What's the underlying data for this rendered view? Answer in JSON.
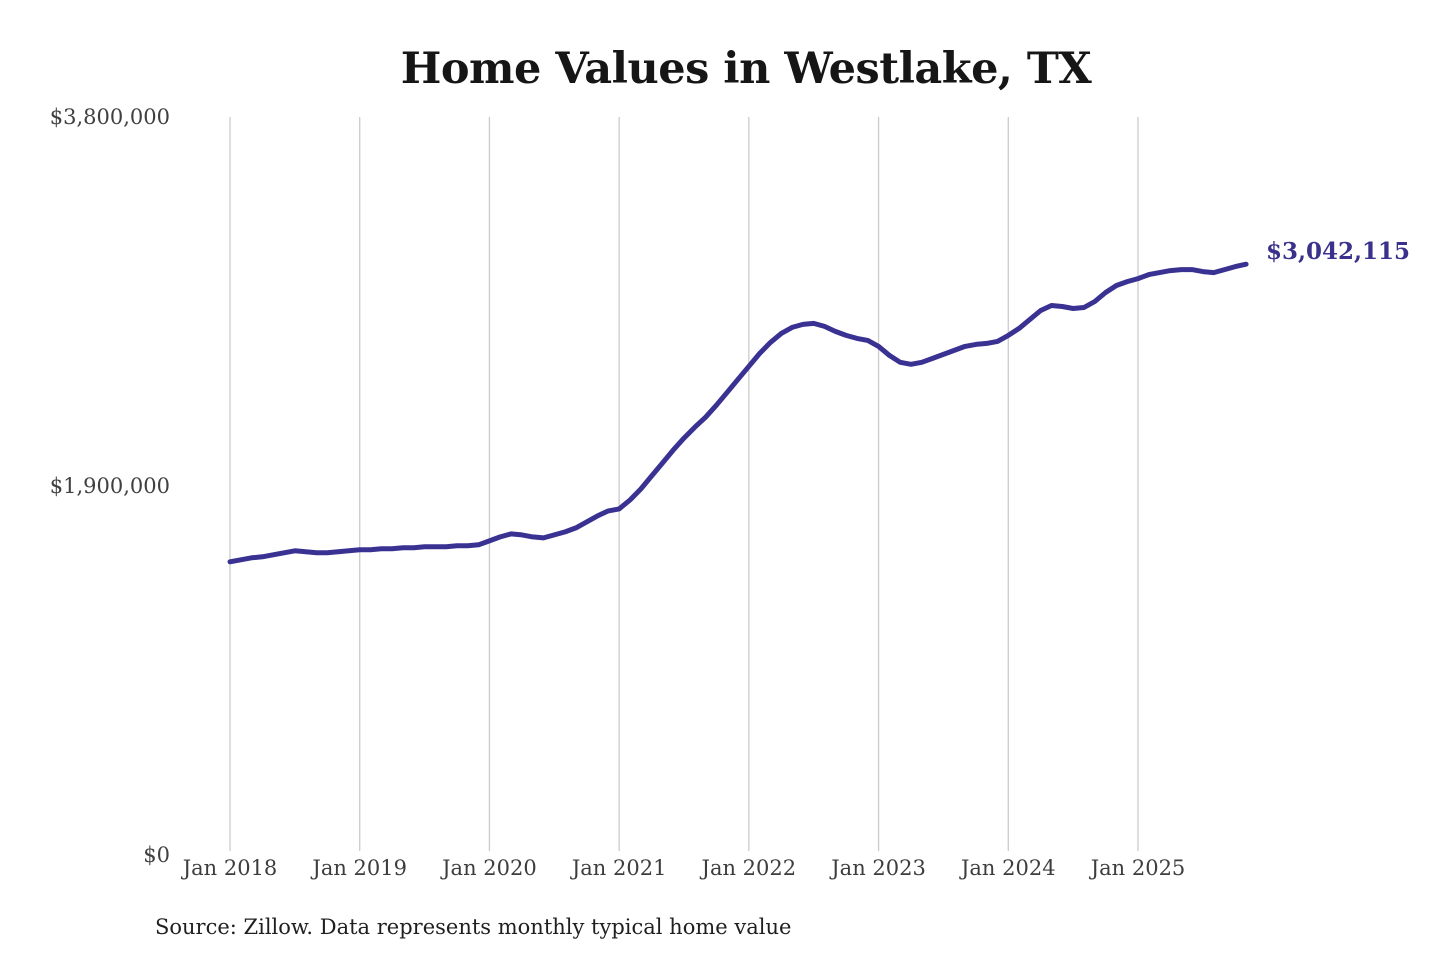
{
  "chart_data": {
    "type": "line",
    "title": "Home Values in Westlake, TX",
    "source_note": "Source: Zillow. Data represents monthly typical home value",
    "end_label": "$3,042,115",
    "series_name": "Monthly typical home value",
    "x_monthly_start": "2018-01",
    "x_monthly_end": "2025-11",
    "x_tick_labels": [
      "Jan 2018",
      "Jan 2019",
      "Jan 2020",
      "Jan 2021",
      "Jan 2022",
      "Jan 2023",
      "Jan 2024",
      "Jan 2025"
    ],
    "y_ticks": [
      {
        "label": "$0",
        "value": 0
      },
      {
        "label": "$1,900,000",
        "value": 1900000
      },
      {
        "label": "$3,800,000",
        "value": 3800000
      }
    ],
    "ylim": [
      0,
      3800000
    ],
    "grid": "vertical-only",
    "legend": "none",
    "values": [
      1509700,
      1520000,
      1530300,
      1535400,
      1545700,
      1556000,
      1566200,
      1561100,
      1556000,
      1556000,
      1561100,
      1566200,
      1571300,
      1571300,
      1576500,
      1576500,
      1581600,
      1581600,
      1586700,
      1586700,
      1586700,
      1591900,
      1591900,
      1597000,
      1617500,
      1638100,
      1653500,
      1648300,
      1638100,
      1633000,
      1648300,
      1663700,
      1684300,
      1715100,
      1745900,
      1771600,
      1781900,
      1828100,
      1884600,
      1951300,
      2018100,
      2084800,
      2146500,
      2202900,
      2254300,
      2315900,
      2382700,
      2449400,
      2516200,
      2583000,
      2639400,
      2685700,
      2716500,
      2731900,
      2737000,
      2721600,
      2695900,
      2675400,
      2660000,
      2649700,
      2618900,
      2572700,
      2536700,
      2526500,
      2536700,
      2557200,
      2577800,
      2598300,
      2618900,
      2629100,
      2634200,
      2644500,
      2675400,
      2711300,
      2757600,
      2803800,
      2829400,
      2824300,
      2814000,
      2819200,
      2850000,
      2896200,
      2932200,
      2952700,
      2968100,
      2988700,
      2998900,
      3009200,
      3014300,
      3014300,
      3004000,
      2998900,
      3014300,
      3029700,
      3042115
    ],
    "last_value": 3042115
  },
  "colors": {
    "line": "#3a3292",
    "end_label": "#39318b",
    "gridline": "#cccccc",
    "background": "#ffffff"
  }
}
